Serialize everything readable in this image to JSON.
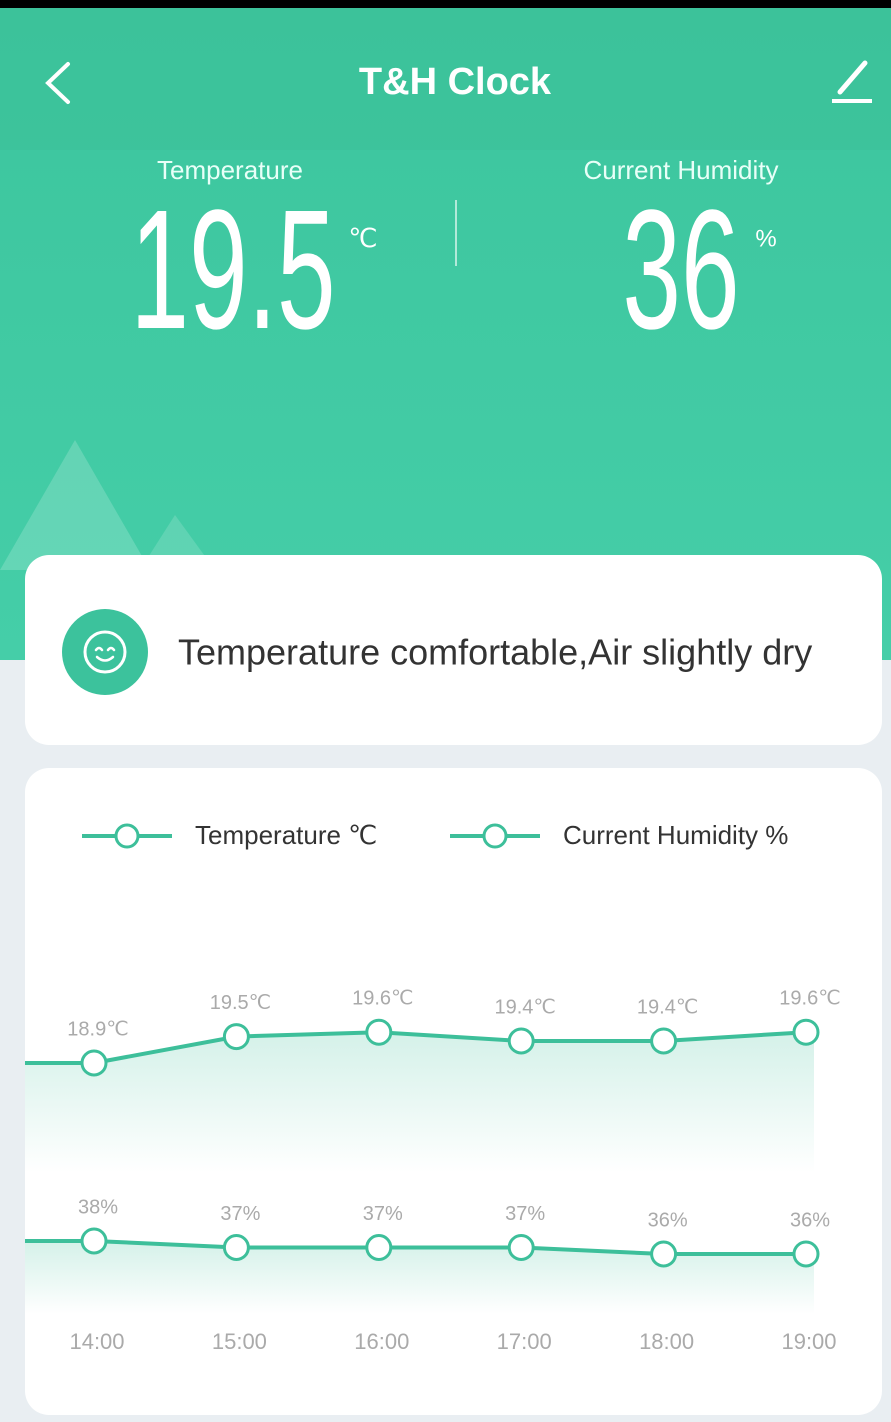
{
  "header": {
    "title": "T&H Clock"
  },
  "readings": {
    "temperature": {
      "label": "Temperature",
      "value": 19.5,
      "unit": "℃"
    },
    "humidity": {
      "label": "Current Humidity",
      "value": 36,
      "unit": "%"
    }
  },
  "status": {
    "text": "Temperature comfortable,Air slightly dry"
  },
  "chart_data": {
    "type": "line",
    "categories": [
      "14:00",
      "15:00",
      "16:00",
      "17:00",
      "18:00",
      "19:00"
    ],
    "series": [
      {
        "name": "Temperature ℃",
        "color": "#3dbf9a",
        "values": [
          18.9,
          19.5,
          19.6,
          19.4,
          19.4,
          19.6
        ],
        "value_labels": [
          "18.9℃",
          "19.5℃",
          "19.6℃",
          "19.4℃",
          "19.4℃",
          "19.6℃"
        ]
      },
      {
        "name": "Current Humidity %",
        "color": "#3dbf9a",
        "values": [
          38,
          37,
          37,
          37,
          36,
          36
        ],
        "value_labels": [
          "38%",
          "37%",
          "37%",
          "37%",
          "36%",
          "36%"
        ]
      }
    ]
  }
}
